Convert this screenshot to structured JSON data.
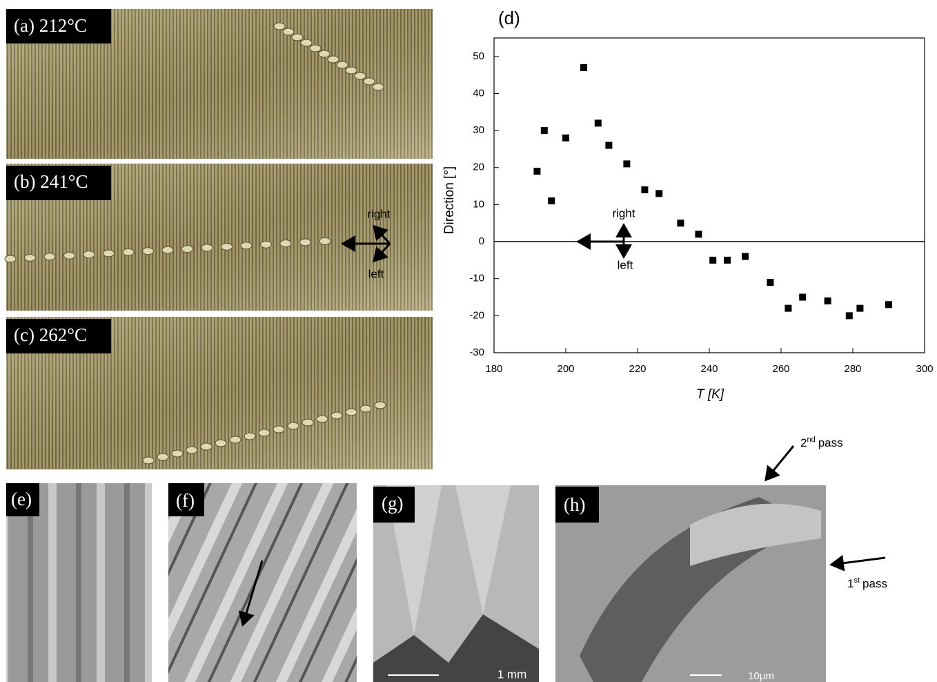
{
  "chart_data": {
    "type": "scatter",
    "title": "(d)",
    "xlabel": "T [K]",
    "ylabel": "Direction [°]",
    "x": [
      192,
      194,
      196,
      200,
      205,
      209,
      212,
      217,
      222,
      226,
      232,
      237,
      241,
      245,
      250,
      257,
      262,
      266,
      273,
      279,
      282,
      290
    ],
    "values": [
      19,
      30,
      11,
      28,
      47,
      32,
      26,
      21,
      14,
      13,
      5,
      2,
      -5,
      -5,
      -4,
      -11,
      -18,
      -15,
      -16,
      -20,
      -18,
      -17
    ],
    "color": "#000000",
    "xlim": [
      180,
      300
    ],
    "xticks": [
      180,
      200,
      220,
      240,
      260,
      280,
      300
    ],
    "ylim": [
      -30,
      55
    ],
    "yticks": [
      -30,
      -20,
      -10,
      0,
      10,
      20,
      30,
      40,
      50
    ],
    "hline": 0,
    "annotations": [
      "right",
      "left"
    ]
  },
  "photos": [
    "(a) 212°C",
    "(b) 241°C",
    "(c) 262°C"
  ],
  "photo_b_annotations": [
    "right",
    "left"
  ],
  "sem_panels": [
    "(e)",
    "(f)",
    "(g)",
    "(h)"
  ],
  "scale_labels": {
    "g": "1 mm",
    "h": "10μm"
  },
  "pass2": {
    "num": "2",
    "sup": "nd",
    "word": "pass"
  },
  "pass1": {
    "num": "1",
    "sup": "st",
    "word": "pass"
  }
}
